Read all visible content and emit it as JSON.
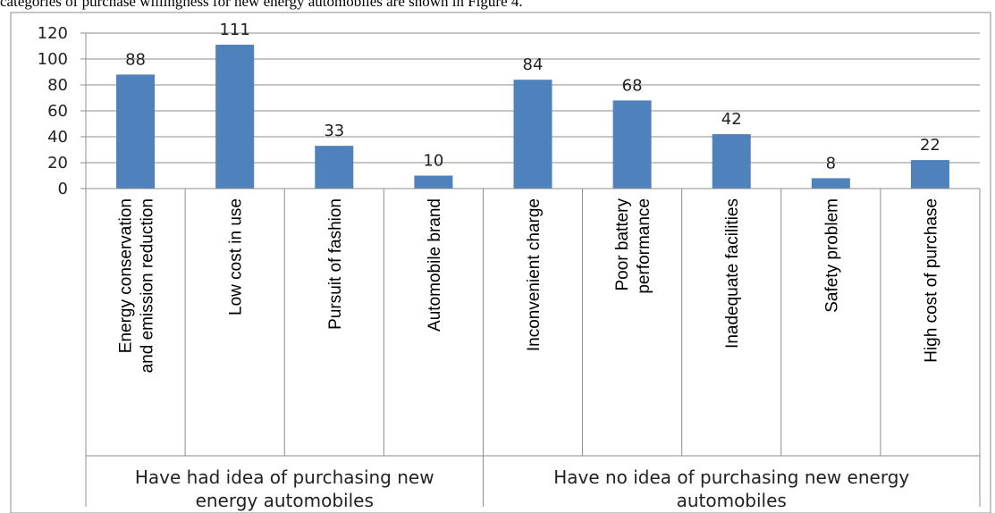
{
  "caption": "categories of purchase willingness for new energy automobiles are shown in Figure 4.",
  "chart_data": {
    "type": "bar",
    "title": "",
    "xlabel": "",
    "ylabel": "",
    "ylim": [
      0,
      120
    ],
    "yticks": [
      0,
      20,
      40,
      60,
      80,
      100,
      120
    ],
    "grid": true,
    "legend": "none",
    "bar_color": "#4f81bd",
    "categories": [
      [
        "Energy conservation",
        "and emission reduction"
      ],
      [
        "Low cost in use"
      ],
      [
        "Pursuit of fashion"
      ],
      [
        "Automobile brand"
      ],
      [
        "Inconvenient charge"
      ],
      [
        "Poor battery",
        "performance"
      ],
      [
        "Inadequate facilities"
      ],
      [
        "Safety problem"
      ],
      [
        "High cost of purchase"
      ]
    ],
    "values": [
      88,
      111,
      33,
      10,
      84,
      68,
      42,
      8,
      22
    ],
    "groups": [
      {
        "label": [
          "Have had idea of purchasing new",
          "energy automobiles"
        ],
        "span": [
          0,
          3
        ]
      },
      {
        "label": [
          "Have no idea of purchasing new energy",
          "automobiles"
        ],
        "span": [
          4,
          8
        ]
      }
    ]
  }
}
